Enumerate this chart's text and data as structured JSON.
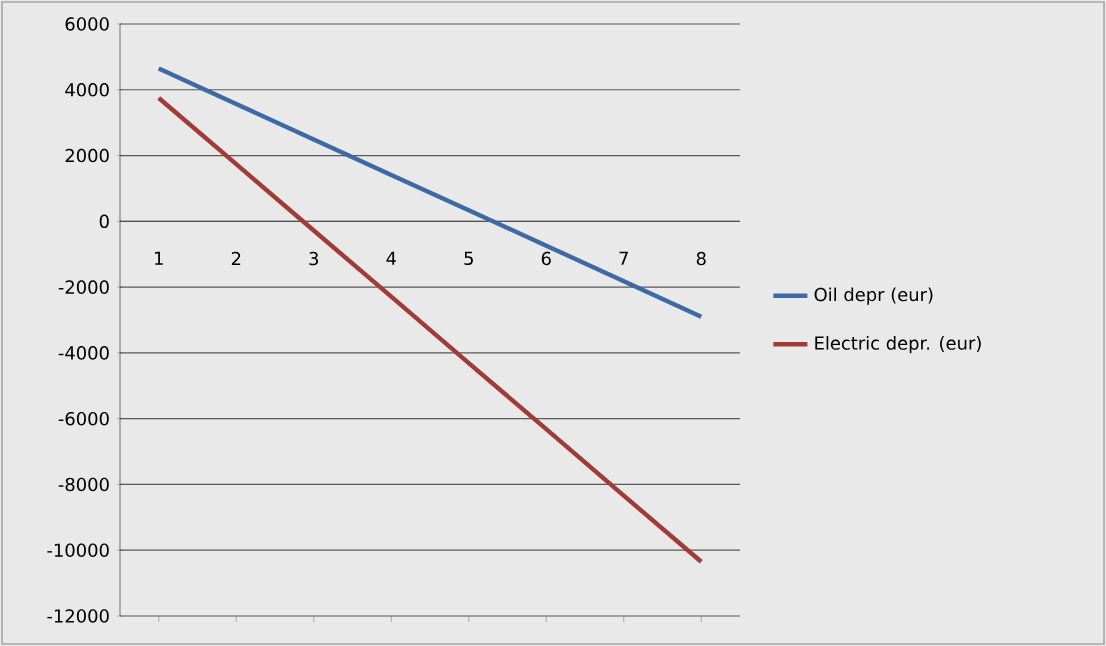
{
  "chart_data": {
    "type": "line",
    "categories": [
      "1",
      "2",
      "3",
      "4",
      "5",
      "6",
      "7",
      "8"
    ],
    "series": [
      {
        "name": "Oil depr (eur)",
        "color": "#3d6aa5",
        "values": [
          4650,
          3570,
          2490,
          1410,
          340,
          -740,
          -1820,
          -2900
        ]
      },
      {
        "name": "Electric depr. (eur)",
        "color": "#a23b36",
        "values": [
          3750,
          1740,
          -280,
          -2290,
          -4310,
          -6320,
          -8340,
          -10350
        ]
      }
    ],
    "ylim": [
      -12000,
      6000
    ],
    "yticks": [
      -12000,
      -10000,
      -8000,
      -6000,
      -4000,
      -2000,
      0,
      2000,
      4000,
      6000
    ],
    "grid": "y",
    "legend": "right",
    "marker": "none",
    "line_style": "solid"
  }
}
